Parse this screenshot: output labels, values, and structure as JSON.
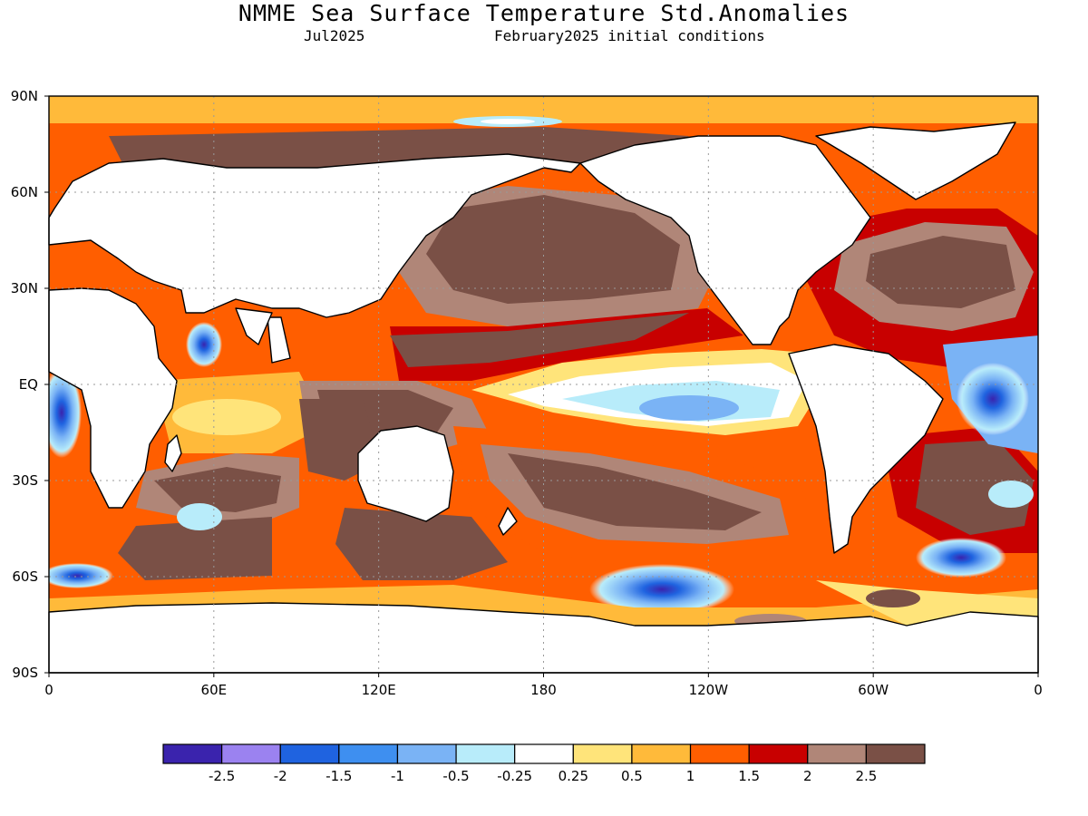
{
  "title": "NMME Sea Surface Temperature Std.Anomalies",
  "subtitle_left": "Jul2025",
  "subtitle_right": "February2025 initial conditions",
  "axes": {
    "lat_labels": [
      "90N",
      "60N",
      "30N",
      "EQ",
      "30S",
      "60S",
      "90S"
    ],
    "lon_labels": [
      "0",
      "60E",
      "120E",
      "180",
      "120W",
      "60W",
      "0"
    ]
  },
  "colorbar": {
    "colors": [
      "#3a23ad",
      "#9b82f0",
      "#1f63e0",
      "#3e8ff0",
      "#7ab3f5",
      "#b8ecfa",
      "#ffffff",
      "#ffe47a",
      "#ffba3a",
      "#ff5e00",
      "#c80000",
      "#b08678",
      "#7a5046"
    ],
    "labels": [
      "-2.5",
      "-2",
      "-1.5",
      "-1",
      "-0.5",
      "-0.25",
      "0.25",
      "0.5",
      "1",
      "1.5",
      "2",
      "2.5"
    ]
  },
  "legend_colors": {
    "land": "#ffffff",
    "coast": "#000000",
    "grid": "#999999"
  }
}
